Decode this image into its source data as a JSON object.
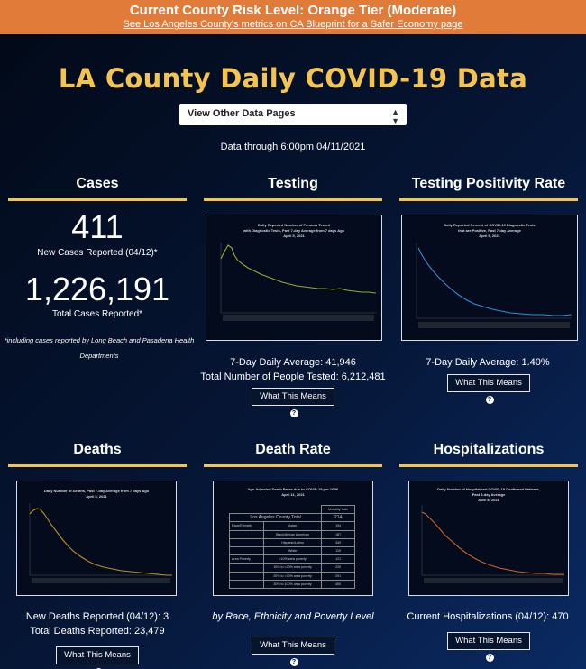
{
  "banner": {
    "title": "Current County Risk Level: Orange Tier (Moderate)",
    "link": "See Los Angeles County's metrics on CA Blueprint for a Safer Economy page"
  },
  "page_title": "LA County Daily COVID-19 Data",
  "selector": {
    "label": "View Other Data Pages",
    "caret": "▲▼"
  },
  "data_through": "Data through 6:00pm 04/11/2021",
  "colors": {
    "accent": "#f4c44f",
    "banner": "#e07b3a",
    "testing_line": "#9aa63a",
    "positivity_line": "#2c8fd6",
    "deaths_line": "#b6921f",
    "hosp_line": "#c8652a"
  },
  "what_this_means": "What This Means",
  "help_icon": "?",
  "cases": {
    "title": "Cases",
    "new_count": "411",
    "new_label": "New Cases Reported (04/12)*",
    "total_count": "1,226,191",
    "total_label": "Total Cases Reported*",
    "footnote": "*including cases reported by Long Beach and Pasadena Health Departments"
  },
  "testing": {
    "title": "Testing",
    "chart_title": [
      "Daily Reported Number of Persons Tested",
      "with Diagnostic Tests, Past 7-day Average from 7 days Ago",
      "April 5, 2021"
    ],
    "stat1": "7-Day Daily Average: 41,946",
    "stat2": "Total Number of People Tested: 6,212,481"
  },
  "positivity": {
    "title": "Testing Positivity Rate",
    "chart_title": [
      "Daily Reported Percent of COVID-19 Diagnostic Tests",
      "that are Positive, Past 7-day Average",
      "April 5, 2021"
    ],
    "stat1": "7-Day Daily Average: 1.40%"
  },
  "deaths": {
    "title": "Deaths",
    "chart_title": [
      "Daily Number of Deaths, Past 7-day Average from 7 days Ago",
      "April 5, 2021"
    ],
    "stat1": "New Deaths Reported (04/12): 3",
    "stat2": "Total Deaths Reported: 23,479"
  },
  "death_rate": {
    "title": "Death Rate",
    "chart_title": [
      "Age-Adjusted Death Rates due to COVID-19 per 100K",
      "April 11, 2021"
    ],
    "table_header": "Mortality Rate",
    "county_label": "Los Angeles County Total",
    "county_value": "214",
    "rows": [
      {
        "group": "Race/Ethnicity",
        "label": "Asian",
        "value": "194"
      },
      {
        "group": "",
        "label": "Black/African American",
        "value": "187"
      },
      {
        "group": "",
        "label": "Hispanic/Latino",
        "value": "349"
      },
      {
        "group": "",
        "label": "White",
        "value": "119"
      },
      {
        "group": "Area Poverty",
        "label": "<10% area poverty",
        "value": "121"
      },
      {
        "group": "",
        "label": "10% to <20% area poverty",
        "value": "220"
      },
      {
        "group": "",
        "label": "20% to <30% area poverty",
        "value": "291"
      },
      {
        "group": "",
        "label": "30% to 100% area poverty",
        "value": "400"
      }
    ],
    "caption": "by Race, Ethnicity and Poverty Level"
  },
  "hospitalizations": {
    "title": "Hospitalizations",
    "chart_title": [
      "Daily Number of Hospitalized COVID-19 Confirmed Patients,",
      "Past 3-day Average",
      "April 8, 2021"
    ],
    "stat1": "Current Hospitalizations (04/12): 470"
  }
}
